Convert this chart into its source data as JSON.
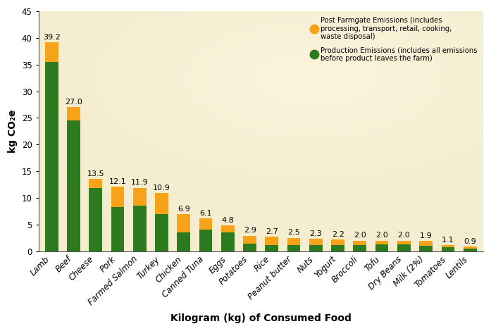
{
  "categories": [
    "Lamb",
    "Beef",
    "Cheese",
    "Pork",
    "Farmed Salmon",
    "Turkey",
    "Chicken",
    "Canned Tuna",
    "Eggs",
    "Potatoes",
    "Rice",
    "Peanut butter",
    "Nuts",
    "Yogurt",
    "Broccoli",
    "Tofu",
    "Dry Beans",
    "Milk (2%)",
    "Tomatoes",
    "Lentils"
  ],
  "totals": [
    39.2,
    27.0,
    13.5,
    12.1,
    11.9,
    10.9,
    6.9,
    6.1,
    4.8,
    2.9,
    2.7,
    2.5,
    2.3,
    2.2,
    2.0,
    2.0,
    2.0,
    1.9,
    1.1,
    0.9
  ],
  "production": [
    35.5,
    24.5,
    11.8,
    8.3,
    8.5,
    7.0,
    3.5,
    4.0,
    3.5,
    1.4,
    1.2,
    1.1,
    1.1,
    1.1,
    1.2,
    1.3,
    1.3,
    1.0,
    0.7,
    0.5
  ],
  "post_farmgate_color": "#F7A319",
  "production_color": "#2D7A1F",
  "fig_bg": "#FFFFFF",
  "ax_bg": "#F5EDD0",
  "glow_color_rgb": [
    1.0,
    0.97,
    0.88
  ],
  "ylabel": "kg CO₂e",
  "xlabel": "Kilogram (kg) of Consumed Food",
  "ylim": [
    0,
    45
  ],
  "yticks": [
    0,
    5,
    10,
    15,
    20,
    25,
    30,
    35,
    40,
    45
  ],
  "legend_orange_label": "Post Farmgate Emissions (includes\nprocessing, transport, retail, cooking,\nwaste disposal)",
  "legend_green_label": "Production Emissions (includes all emissions\nbefore product leaves the farm)",
  "label_fontsize": 8.0,
  "axis_label_fontsize": 10,
  "tick_fontsize": 8.5,
  "bar_width": 0.6
}
